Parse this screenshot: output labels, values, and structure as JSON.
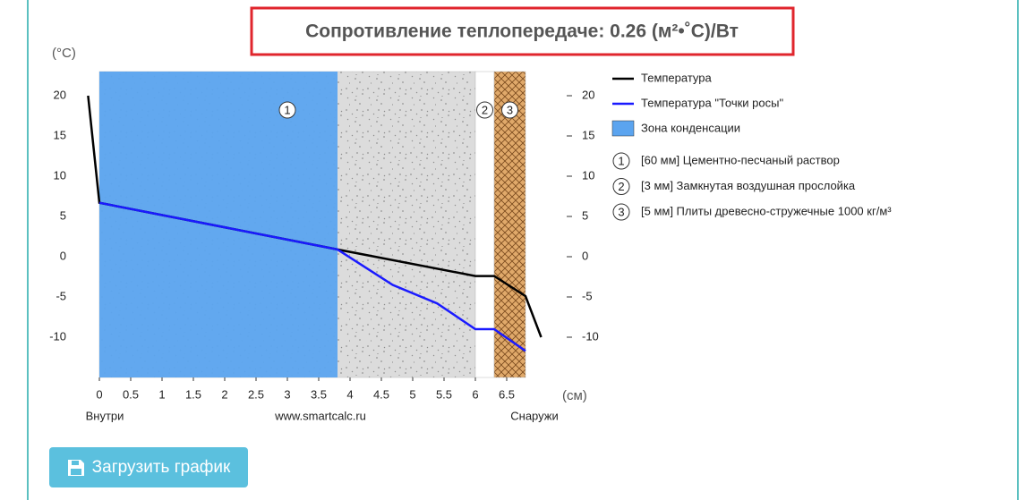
{
  "header": {
    "title": "Сопротивление теплопередаче: 0.26 (м²•˚С)/Вт"
  },
  "chart_data": {
    "type": "line",
    "y_label": "(°C)",
    "x_label": "(см)",
    "x_notes": [
      "Внутри",
      "www.smartcalc.ru",
      "Снаружи"
    ],
    "xlim": [
      -0.3,
      7.3
    ],
    "xticks": [
      0,
      0.5,
      1,
      1.5,
      2,
      2.5,
      3,
      3.5,
      4,
      4.5,
      5,
      5.5,
      6,
      6.5
    ],
    "ylim": [
      -15,
      23
    ],
    "yticks": [
      20,
      15,
      10,
      5,
      0,
      -5,
      -10
    ],
    "y2lim": [
      -15,
      23
    ],
    "y2ticks": [
      20,
      15,
      10,
      5,
      0,
      -5,
      -10
    ],
    "series": [
      {
        "name": "Температура",
        "color": "#000000",
        "x": [
          -0.18,
          0,
          3.8,
          6.0,
          6.3,
          6.8,
          7.05
        ],
        "values": [
          20,
          6.7,
          0.9,
          -2.4,
          -2.4,
          -4.9,
          -10
        ]
      },
      {
        "name": "Температура \"Точки росы\"",
        "color": "#1a1aff",
        "x": [
          0,
          3.8,
          4.68,
          5.39,
          6.0,
          6.3,
          6.8
        ],
        "values": [
          6.7,
          0.9,
          -3.5,
          -5.8,
          -9,
          -9,
          -11.7
        ]
      }
    ],
    "zone": {
      "name": "Зона конденсации",
      "color": "#5ba4ef",
      "range": [
        0,
        3.8
      ]
    },
    "layers": [
      {
        "label": "1",
        "name": "[60 мм] Цементно-песчаный раствор",
        "range": [
          0,
          6.0
        ]
      },
      {
        "label": "2",
        "name": "[3 мм] Замкнутая воздушная прослойка",
        "range": [
          6.0,
          6.3
        ]
      },
      {
        "label": "3",
        "name": "[5 мм] Плиты древесно-стружечные 1000 кг/м³",
        "range": [
          6.3,
          6.8
        ]
      }
    ]
  },
  "button": {
    "label": "Загрузить график"
  }
}
